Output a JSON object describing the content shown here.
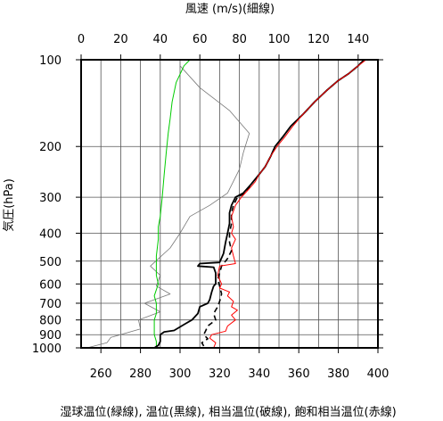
{
  "chart_data": {
    "type": "line",
    "title_top": "風速 (m/s)(細線)",
    "xlabel_bottom": "湿球温位(緑線), 温位(黒線), 相当温位(破線), 飽和相当温位(赤線)",
    "ylabel": "気圧(hPa)",
    "grid": true,
    "top_axis": {
      "range": [
        0,
        150
      ],
      "ticks": [
        0,
        20,
        40,
        60,
        80,
        100,
        120,
        140
      ],
      "labels": [
        "0",
        "20",
        "40",
        "60",
        "80",
        "100",
        "120",
        "140"
      ]
    },
    "bottom_axis": {
      "range": [
        250,
        400
      ],
      "ticks": [
        260,
        280,
        300,
        320,
        340,
        360,
        380,
        400
      ],
      "labels": [
        "260",
        "280",
        "300",
        "320",
        "340",
        "360",
        "380",
        "400"
      ]
    },
    "left_axis": {
      "scale": "log",
      "range": [
        100,
        1000
      ],
      "ticks": [
        100,
        200,
        300,
        400,
        500,
        600,
        700,
        800,
        900,
        1000
      ],
      "labels": [
        "100",
        "200",
        "300",
        "400",
        "500",
        "600",
        "700",
        "800",
        "900",
        "1000"
      ]
    },
    "series": [
      {
        "key": "wind",
        "axis": "top",
        "color": "#777777",
        "style": "thin",
        "points": [
          [
            3,
            1000
          ],
          [
            13,
            960
          ],
          [
            15,
            920
          ],
          [
            30,
            860
          ],
          [
            29,
            800
          ],
          [
            40,
            750
          ],
          [
            32,
            700
          ],
          [
            45,
            650
          ],
          [
            38,
            610
          ],
          [
            40,
            560
          ],
          [
            35,
            520
          ],
          [
            45,
            450
          ],
          [
            50,
            400
          ],
          [
            55,
            350
          ],
          [
            65,
            320
          ],
          [
            74,
            290
          ],
          [
            80,
            240
          ],
          [
            82,
            210
          ],
          [
            85,
            180
          ],
          [
            75,
            150
          ],
          [
            60,
            125
          ],
          [
            50,
            105
          ]
        ]
      },
      {
        "key": "wet_bulb_pt",
        "axis": "bottom",
        "color": "#00cc00",
        "style": "solid",
        "points": [
          [
            288,
            1000
          ],
          [
            288,
            950
          ],
          [
            287,
            900
          ],
          [
            287,
            860
          ],
          [
            287,
            800
          ],
          [
            288,
            760
          ],
          [
            288,
            700
          ],
          [
            287,
            660
          ],
          [
            289,
            600
          ],
          [
            288,
            560
          ],
          [
            288,
            520
          ],
          [
            288,
            480
          ],
          [
            289,
            420
          ],
          [
            289,
            380
          ],
          [
            290,
            350
          ],
          [
            291,
            300
          ],
          [
            292,
            250
          ],
          [
            293,
            210
          ],
          [
            294,
            180
          ],
          [
            295,
            160
          ],
          [
            296,
            140
          ],
          [
            298,
            120
          ],
          [
            302,
            105
          ],
          [
            305,
            100
          ]
        ]
      },
      {
        "key": "potential_temp",
        "axis": "bottom",
        "color": "#000000",
        "style": "solid",
        "points": [
          [
            287,
            1000
          ],
          [
            289,
            980
          ],
          [
            290,
            950
          ],
          [
            290,
            900
          ],
          [
            292,
            880
          ],
          [
            297,
            870
          ],
          [
            302,
            830
          ],
          [
            306,
            800
          ],
          [
            309,
            760
          ],
          [
            310,
            720
          ],
          [
            314,
            700
          ],
          [
            315,
            680
          ],
          [
            316,
            640
          ],
          [
            317,
            610
          ],
          [
            318,
            600
          ],
          [
            318,
            575
          ],
          [
            318,
            550
          ],
          [
            317,
            525
          ],
          [
            309,
            520
          ],
          [
            310,
            510
          ],
          [
            320,
            505
          ],
          [
            322,
            470
          ],
          [
            323,
            430
          ],
          [
            324,
            400
          ],
          [
            325,
            370
          ],
          [
            325,
            340
          ],
          [
            326,
            320
          ],
          [
            328,
            300
          ],
          [
            332,
            290
          ],
          [
            336,
            270
          ],
          [
            340,
            250
          ],
          [
            343,
            235
          ],
          [
            346,
            215
          ],
          [
            348,
            200
          ],
          [
            352,
            185
          ],
          [
            356,
            170
          ],
          [
            362,
            155
          ],
          [
            368,
            140
          ],
          [
            374,
            128
          ],
          [
            380,
            118
          ],
          [
            385,
            112
          ],
          [
            390,
            105
          ],
          [
            393,
            100
          ]
        ]
      },
      {
        "key": "equiv_pt",
        "axis": "bottom",
        "color": "#000000",
        "style": "dashed",
        "points": [
          [
            312,
            985
          ],
          [
            311,
            960
          ],
          [
            314,
            930
          ],
          [
            312,
            900
          ],
          [
            313,
            870
          ],
          [
            314,
            840
          ],
          [
            318,
            800
          ],
          [
            317,
            760
          ],
          [
            319,
            720
          ],
          [
            320,
            690
          ],
          [
            321,
            650
          ],
          [
            320,
            610
          ],
          [
            319,
            580
          ],
          [
            320,
            550
          ],
          [
            321,
            520
          ],
          [
            324,
            490
          ],
          [
            326,
            460
          ],
          [
            325,
            430
          ],
          [
            325,
            400
          ],
          [
            326,
            370
          ],
          [
            326,
            340
          ],
          [
            327,
            320
          ],
          [
            329,
            300
          ],
          [
            333,
            290
          ],
          [
            336,
            270
          ],
          [
            340,
            250
          ],
          [
            343,
            235
          ],
          [
            346,
            215
          ],
          [
            348,
            200
          ],
          [
            352,
            185
          ],
          [
            356,
            170
          ],
          [
            362,
            155
          ],
          [
            368,
            140
          ],
          [
            374,
            128
          ],
          [
            380,
            118
          ],
          [
            385,
            112
          ],
          [
            390,
            105
          ],
          [
            393,
            100
          ]
        ]
      },
      {
        "key": "sat_equiv_pt",
        "axis": "bottom",
        "color": "#ff0000",
        "style": "solid",
        "points": [
          [
            317,
            1000
          ],
          [
            318,
            960
          ],
          [
            315,
            925
          ],
          [
            316,
            900
          ],
          [
            323,
            875
          ],
          [
            324,
            840
          ],
          [
            328,
            800
          ],
          [
            326,
            770
          ],
          [
            329,
            740
          ],
          [
            326,
            720
          ],
          [
            327,
            690
          ],
          [
            324,
            660
          ],
          [
            325,
            640
          ],
          [
            320,
            620
          ],
          [
            321,
            600
          ],
          [
            319,
            560
          ],
          [
            320,
            520
          ],
          [
            328,
            510
          ],
          [
            327,
            480
          ],
          [
            326,
            450
          ],
          [
            328,
            420
          ],
          [
            326,
            400
          ],
          [
            327,
            380
          ],
          [
            326,
            350
          ],
          [
            328,
            320
          ],
          [
            331,
            300
          ],
          [
            335,
            280
          ],
          [
            338,
            265
          ],
          [
            340,
            250
          ],
          [
            343,
            235
          ],
          [
            346,
            215
          ],
          [
            349,
            200
          ],
          [
            353,
            185
          ],
          [
            357,
            170
          ],
          [
            362,
            155
          ],
          [
            368,
            140
          ],
          [
            374,
            128
          ],
          [
            380,
            118
          ],
          [
            385,
            112
          ],
          [
            390,
            105
          ],
          [
            394,
            100
          ]
        ]
      }
    ]
  }
}
